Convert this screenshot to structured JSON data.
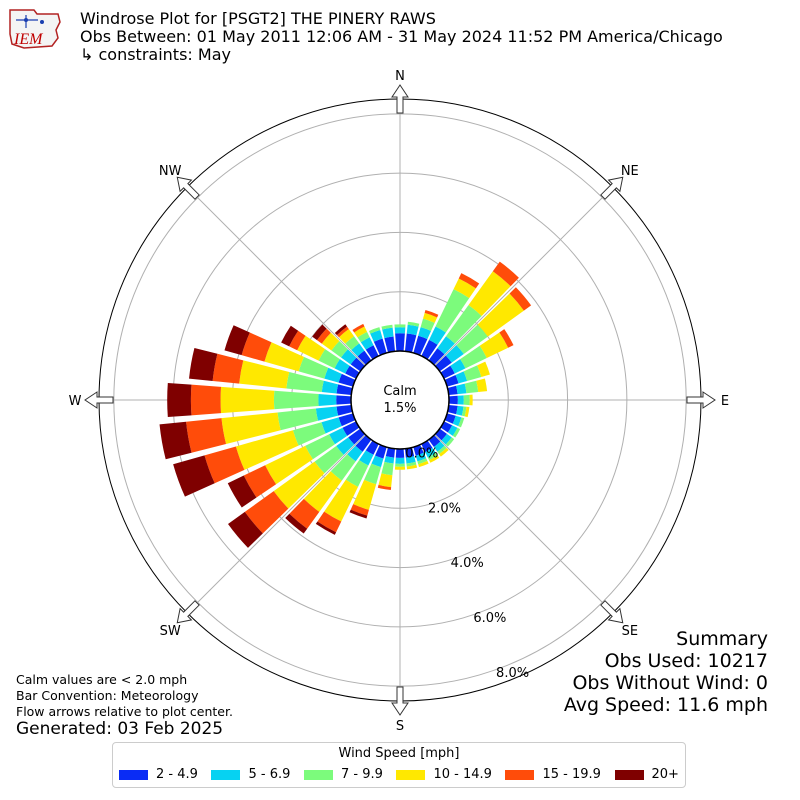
{
  "header": {
    "title": "Windrose Plot for [PSGT2] THE PINERY RAWS",
    "period": "Obs Between: 01 May 2011 12:06 AM - 31 May 2024 11:52 PM America/Chicago",
    "constraints": "↳ constraints: May"
  },
  "logo": {
    "text": "IEM"
  },
  "footnotes": {
    "calm_note": "Calm values are < 2.0 mph",
    "bar_convention": "Bar Convention: Meteorology",
    "flow_arrows": "Flow arrows relative to plot center.",
    "generated": "Generated: 03 Feb 2025"
  },
  "summary": {
    "heading": "Summary",
    "obs_used": "Obs Used: 10217",
    "obs_without_wind": "Obs Without Wind: 0",
    "avg_speed": "Avg Speed: 11.6 mph"
  },
  "legend": {
    "title": "Wind Speed [mph]",
    "items": [
      {
        "label": "2 - 4.9",
        "color": "#0a2cf5"
      },
      {
        "label": "5 - 6.9",
        "color": "#06d2f2"
      },
      {
        "label": "7 - 9.9",
        "color": "#7cfb7c"
      },
      {
        "label": "10 - 14.9",
        "color": "#ffe800"
      },
      {
        "label": "15 - 19.9",
        "color": "#ff4c0a"
      },
      {
        "label": "20+",
        "color": "#7f0000"
      }
    ]
  },
  "chart_data": {
    "type": "windrose",
    "calm_label": "Calm",
    "calm_value": "1.5%",
    "directions": [
      "N",
      "NE",
      "E",
      "SE",
      "S",
      "SW",
      "W",
      "NW"
    ],
    "radial_ticks": [
      "0.0%",
      "2.0%",
      "4.0%",
      "6.0%",
      "8.0%"
    ],
    "rmax": 8.5,
    "calm_percent": 1.5,
    "units": "percent",
    "bins": [
      "2 - 4.9",
      "5 - 6.9",
      "7 - 9.9",
      "10 - 14.9",
      "15 - 19.9",
      "20+"
    ],
    "sectors": [
      {
        "dir": 0,
        "values": [
          0.6,
          0.2,
          0.1,
          0.0,
          0.0,
          0.0
        ]
      },
      {
        "dir": 10,
        "values": [
          0.6,
          0.3,
          0.1,
          0.0,
          0.0,
          0.0
        ]
      },
      {
        "dir": 20,
        "values": [
          0.6,
          0.3,
          0.3,
          0.2,
          0.1,
          0.0
        ]
      },
      {
        "dir": 30,
        "values": [
          0.6,
          0.5,
          1.4,
          0.4,
          0.2,
          0.0
        ]
      },
      {
        "dir": 40,
        "values": [
          0.5,
          0.5,
          1.3,
          1.4,
          0.4,
          0.0
        ]
      },
      {
        "dir": 50,
        "values": [
          0.5,
          0.5,
          1.0,
          1.5,
          0.3,
          0.0
        ]
      },
      {
        "dir": 60,
        "values": [
          0.4,
          0.4,
          0.8,
          0.8,
          0.2,
          0.0
        ]
      },
      {
        "dir": 70,
        "values": [
          0.4,
          0.3,
          0.5,
          0.3,
          0.0,
          0.0
        ]
      },
      {
        "dir": 80,
        "values": [
          0.3,
          0.3,
          0.4,
          0.3,
          0.0,
          0.0
        ]
      },
      {
        "dir": 90,
        "values": [
          0.3,
          0.2,
          0.2,
          0.1,
          0.0,
          0.0
        ]
      },
      {
        "dir": 100,
        "values": [
          0.3,
          0.2,
          0.1,
          0.1,
          0.0,
          0.0
        ]
      },
      {
        "dir": 110,
        "values": [
          0.3,
          0.2,
          0.1,
          0.0,
          0.0,
          0.0
        ]
      },
      {
        "dir": 120,
        "values": [
          0.3,
          0.2,
          0.1,
          0.0,
          0.0,
          0.0
        ]
      },
      {
        "dir": 130,
        "values": [
          0.3,
          0.2,
          0.1,
          0.0,
          0.0,
          0.0
        ]
      },
      {
        "dir": 140,
        "values": [
          0.3,
          0.2,
          0.1,
          0.1,
          0.0,
          0.0
        ]
      },
      {
        "dir": 150,
        "values": [
          0.3,
          0.2,
          0.1,
          0.1,
          0.0,
          0.0
        ]
      },
      {
        "dir": 160,
        "values": [
          0.3,
          0.2,
          0.1,
          0.1,
          0.0,
          0.0
        ]
      },
      {
        "dir": 170,
        "values": [
          0.3,
          0.2,
          0.1,
          0.1,
          0.0,
          0.0
        ]
      },
      {
        "dir": 180,
        "values": [
          0.3,
          0.2,
          0.1,
          0.1,
          0.0,
          0.0
        ]
      },
      {
        "dir": 190,
        "values": [
          0.3,
          0.2,
          0.4,
          0.4,
          0.1,
          0.0
        ]
      },
      {
        "dir": 200,
        "values": [
          0.4,
          0.3,
          0.6,
          0.9,
          0.2,
          0.1
        ]
      },
      {
        "dir": 210,
        "values": [
          0.4,
          0.4,
          0.8,
          1.3,
          0.4,
          0.1
        ]
      },
      {
        "dir": 220,
        "values": [
          0.5,
          0.4,
          0.8,
          1.3,
          0.7,
          0.2
        ]
      },
      {
        "dir": 230,
        "values": [
          0.5,
          0.5,
          0.9,
          1.7,
          1.2,
          0.7
        ]
      },
      {
        "dir": 240,
        "values": [
          0.5,
          0.5,
          0.9,
          1.5,
          0.8,
          0.6
        ]
      },
      {
        "dir": 250,
        "values": [
          0.5,
          0.6,
          1.0,
          2.0,
          1.1,
          1.1
        ]
      },
      {
        "dir": 260,
        "values": [
          0.5,
          0.7,
          1.3,
          1.9,
          1.2,
          0.9
        ]
      },
      {
        "dir": 270,
        "values": [
          0.5,
          0.6,
          1.5,
          1.8,
          1.0,
          0.8
        ]
      },
      {
        "dir": 280,
        "values": [
          0.5,
          0.5,
          1.2,
          1.6,
          0.9,
          0.8
        ]
      },
      {
        "dir": 290,
        "values": [
          0.5,
          0.5,
          0.9,
          1.2,
          0.8,
          0.6
        ]
      },
      {
        "dir": 300,
        "values": [
          0.4,
          0.4,
          0.6,
          0.8,
          0.3,
          0.3
        ]
      },
      {
        "dir": 310,
        "values": [
          0.4,
          0.4,
          0.4,
          0.4,
          0.2,
          0.2
        ]
      },
      {
        "dir": 320,
        "values": [
          0.4,
          0.3,
          0.3,
          0.3,
          0.1,
          0.1
        ]
      },
      {
        "dir": 330,
        "values": [
          0.4,
          0.3,
          0.2,
          0.2,
          0.1,
          0.0
        ]
      },
      {
        "dir": 340,
        "values": [
          0.5,
          0.3,
          0.1,
          0.0,
          0.0,
          0.0
        ]
      },
      {
        "dir": 350,
        "values": [
          0.5,
          0.3,
          0.1,
          0.0,
          0.0,
          0.0
        ]
      }
    ]
  }
}
